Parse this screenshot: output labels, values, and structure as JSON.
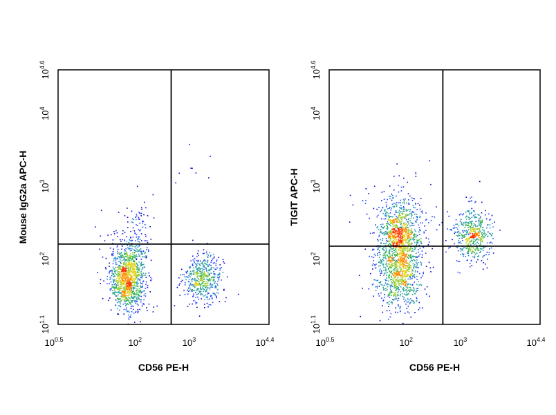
{
  "chart_data": [
    {
      "type": "scatter",
      "subtype": "flow-cytometry-density-plot",
      "xlabel": "CD56 PE-H",
      "ylabel": "Mouse IgG2a APC-H",
      "x_scale": "log",
      "y_scale": "log",
      "xlim": [
        3.1623,
        25119
      ],
      "ylim": [
        12.589,
        39811
      ],
      "x_ticks": [
        {
          "base": "10",
          "exp": "0.5",
          "value": 3.1623
        },
        {
          "base": "10",
          "exp": "2",
          "value": 100
        },
        {
          "base": "10",
          "exp": "3",
          "value": 1000
        },
        {
          "base": "10",
          "exp": "4.4",
          "value": 25119
        }
      ],
      "y_ticks": [
        {
          "base": "10",
          "exp": "1.1",
          "value": 12.589
        },
        {
          "base": "10",
          "exp": "2",
          "value": 100
        },
        {
          "base": "10",
          "exp": "3",
          "value": 1000
        },
        {
          "base": "10",
          "exp": "4",
          "value": 10000
        },
        {
          "base": "10",
          "exp": "4.6",
          "value": 39811
        }
      ],
      "quadrant_gates": {
        "x": 390,
        "y": 160
      },
      "grid": false,
      "populations": [
        {
          "x": 60,
          "y": 55,
          "sx": 0.16,
          "sy": 0.22,
          "n": 1100
        },
        {
          "x": 1500,
          "y": 55,
          "sx": 0.18,
          "sy": 0.16,
          "n": 480
        },
        {
          "x": 100,
          "y": 200,
          "sx": 0.1,
          "sy": 0.3,
          "n": 90
        },
        {
          "x": 60,
          "y": 160,
          "sx": 0.25,
          "sy": 0.3,
          "n": 60
        },
        {
          "x": 900,
          "y": 3000,
          "sx": 0.25,
          "sy": 0.35,
          "n": 8
        }
      ]
    },
    {
      "type": "scatter",
      "subtype": "flow-cytometry-density-plot",
      "xlabel": "CD56 PE-H",
      "ylabel": "TIGIT APC-H",
      "x_scale": "log",
      "y_scale": "log",
      "xlim": [
        3.1623,
        25119
      ],
      "ylim": [
        12.589,
        39811
      ],
      "x_ticks": [
        {
          "base": "10",
          "exp": "0.5",
          "value": 3.1623
        },
        {
          "base": "10",
          "exp": "2",
          "value": 100
        },
        {
          "base": "10",
          "exp": "3",
          "value": 1000
        },
        {
          "base": "10",
          "exp": "4.4",
          "value": 25119
        }
      ],
      "y_ticks": [
        {
          "base": "10",
          "exp": "1.1",
          "value": 12.589
        },
        {
          "base": "10",
          "exp": "2",
          "value": 100
        },
        {
          "base": "10",
          "exp": "3",
          "value": 1000
        },
        {
          "base": "10",
          "exp": "4",
          "value": 10000
        },
        {
          "base": "10",
          "exp": "4.6",
          "value": 39811
        }
      ],
      "quadrant_gates": {
        "x": 400,
        "y": 150
      },
      "grid": false,
      "populations": [
        {
          "x": 60,
          "y": 80,
          "sx": 0.22,
          "sy": 0.3,
          "n": 1100
        },
        {
          "x": 60,
          "y": 250,
          "sx": 0.18,
          "sy": 0.2,
          "n": 500
        },
        {
          "x": 1400,
          "y": 220,
          "sx": 0.17,
          "sy": 0.18,
          "n": 500
        },
        {
          "x": 60,
          "y": 400,
          "sx": 0.35,
          "sy": 0.3,
          "n": 150
        }
      ]
    }
  ]
}
